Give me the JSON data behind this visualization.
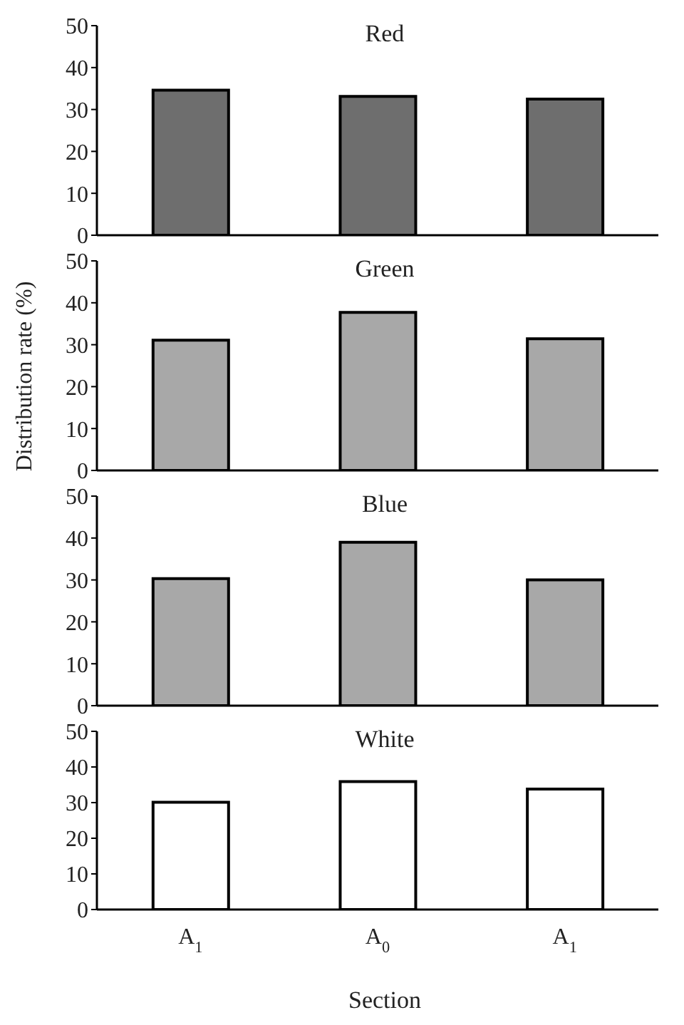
{
  "chart_data": [
    {
      "type": "bar",
      "title": "Red",
      "categories": [
        null,
        null,
        null
      ],
      "values": [
        34.6,
        33.1,
        32.5
      ],
      "color": "#6e6e6e",
      "ylim": [
        0,
        50
      ],
      "yticks": [
        0,
        10,
        20,
        30,
        40,
        50
      ],
      "tick_labels": "y"
    },
    {
      "type": "bar",
      "title": "Green",
      "ylabel": "Distribution rate (%)",
      "categories": [
        null,
        null,
        null
      ],
      "values": [
        31.1,
        37.7,
        31.4
      ],
      "color": "#a8a8a8",
      "ylim": [
        0,
        50
      ],
      "yticks": [
        0,
        10,
        20,
        30,
        40,
        50
      ],
      "tick_labels": "y"
    },
    {
      "type": "bar",
      "title": "Blue",
      "categories": [
        null,
        null,
        null
      ],
      "values": [
        30.3,
        39.0,
        30.0
      ],
      "color": "#a8a8a8",
      "ylim": [
        0,
        50
      ],
      "yticks": [
        0,
        10,
        20,
        30,
        40,
        50
      ],
      "tick_labels": "y"
    },
    {
      "type": "bar",
      "title": "White",
      "xlabel": "Section",
      "categories": [
        "A$_{1}$",
        "A$_{0}$",
        "A$_{1}$"
      ],
      "values": [
        30.1,
        35.9,
        33.8
      ],
      "color": "#ffffff",
      "ylim": [
        0,
        50
      ],
      "yticks": [
        0,
        10,
        20,
        30,
        40,
        50
      ]
    }
  ]
}
